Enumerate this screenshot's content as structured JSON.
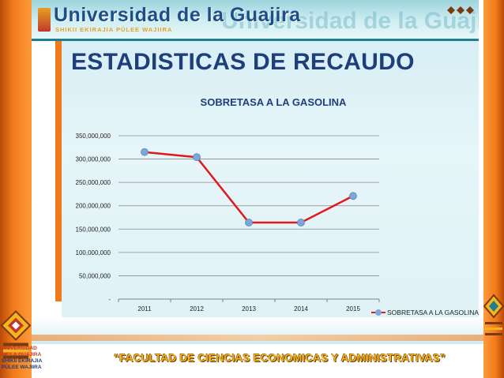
{
  "header": {
    "title": "Universidad de la Guajira",
    "ghost_title": "Universidad de la Guajira",
    "subtitle": "SHIKII EKIRAJIA PÚLEE WAJIIRA"
  },
  "slide": {
    "title": "ESTADISTICAS DE RECAUDO"
  },
  "chart_data": {
    "type": "line",
    "title": "SOBRETASA A LA GASOLINA",
    "categories": [
      "2011",
      "2012",
      "2013",
      "2014",
      "2015"
    ],
    "series": [
      {
        "name": "SOBRETASA A LA GASOLINA",
        "values": [
          315000000,
          304000000,
          164000000,
          164000000,
          221000000
        ]
      }
    ],
    "ylim": [
      0,
      350000000
    ],
    "yticks": [
      "-",
      "50,000,000",
      "100,000,000",
      "150,000,000",
      "200,000,000",
      "250,000,000",
      "300,000,000",
      "350,000,000"
    ],
    "grid": true,
    "legend_position": "bottom-right",
    "colors": {
      "line": "#e0191a",
      "marker": "#7ea6d8"
    }
  },
  "footer": {
    "text": "“FACULTAD DE CIENCIAS ECONOMICAS Y ADMINISTRATIVAS”"
  },
  "logo": {
    "line1": "UNIVERSIDAD",
    "line2": "DE LA GUAJIRA",
    "line3": "SHIKII EKIRAJIA",
    "line4": "PÚLEE WAJIIRA"
  }
}
